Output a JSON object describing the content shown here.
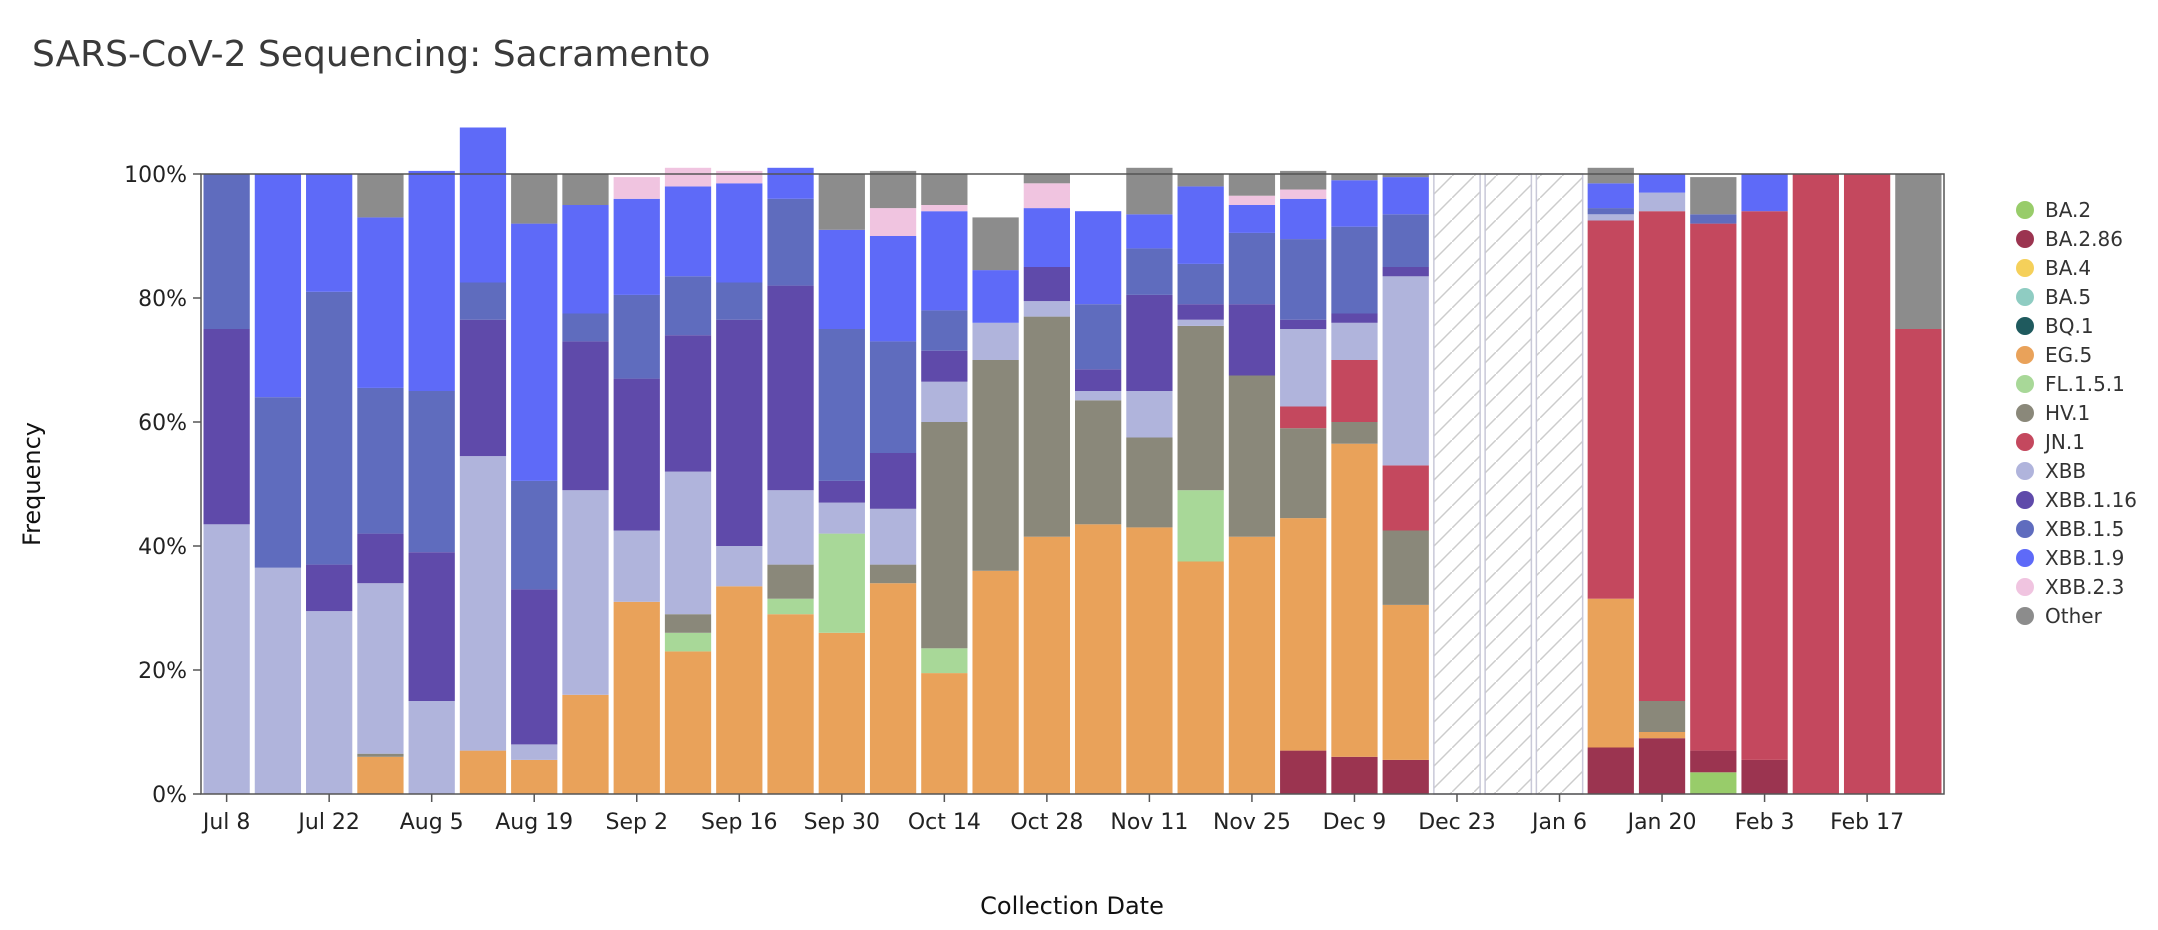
{
  "page": {
    "title": "SARS-CoV-2 Sequencing: Sacramento"
  },
  "chart_data": {
    "type": "bar",
    "stacked": true,
    "title": "SARS-CoV-2 Sequencing: Sacramento",
    "xlabel": "Collection Date",
    "ylabel": "Frequency",
    "ylim": [
      0,
      100
    ],
    "yticks": [
      "0%",
      "20%",
      "40%",
      "60%",
      "80%",
      "100%"
    ],
    "xtick_labels": [
      "Jul 8",
      "Jul 22",
      "Aug 5",
      "Aug 19",
      "Sep 2",
      "Sep 16",
      "Sep 30",
      "Oct 14",
      "Oct 28",
      "Nov 11",
      "Nov 25",
      "Dec 9",
      "Dec 23",
      "Jan 6",
      "Jan 20",
      "Feb 3",
      "Feb 17"
    ],
    "xtick_week_index": [
      0,
      2,
      4,
      6,
      8,
      10,
      12,
      14,
      16,
      18,
      20,
      22,
      24,
      26,
      28,
      30,
      32
    ],
    "categories": [
      "Jul 8",
      "Jul 15",
      "Jul 22",
      "Jul 29",
      "Aug 5",
      "Aug 12",
      "Aug 19",
      "Aug 26",
      "Sep 2",
      "Sep 9",
      "Sep 16",
      "Sep 23",
      "Sep 30",
      "Oct 7",
      "Oct 14",
      "Oct 21",
      "Oct 28",
      "Nov 4",
      "Nov 11",
      "Nov 18",
      "Nov 25",
      "Dec 2",
      "Dec 9",
      "Dec 16",
      "Dec 23",
      "Dec 30",
      "Jan 6",
      "Jan 13",
      "Jan 20",
      "Jan 27",
      "Feb 3",
      "Feb 10",
      "Feb 17",
      "Feb 24"
    ],
    "no_data_weeks": [
      "Dec 23",
      "Dec 30",
      "Jan 6"
    ],
    "legend_position": "right",
    "series": [
      {
        "name": "BA.2",
        "color": "#98cc6a",
        "values": [
          0,
          0,
          0,
          0,
          0,
          0,
          0,
          0,
          0,
          0,
          0,
          0,
          0,
          0,
          0,
          0,
          0,
          0,
          0,
          0,
          0,
          0,
          0,
          0,
          0,
          0,
          0,
          0,
          0,
          3.5,
          0,
          0,
          0,
          0
        ]
      },
      {
        "name": "BA.2.86",
        "color": "#9b3450",
        "values": [
          0,
          0,
          0,
          0,
          0,
          0,
          0,
          0,
          0,
          0,
          0,
          0,
          0,
          0,
          0,
          0,
          0,
          0,
          0,
          0,
          0,
          7,
          6,
          5.5,
          0,
          0,
          0,
          7.5,
          9,
          3.5,
          5.5,
          0,
          0,
          0
        ]
      },
      {
        "name": "BA.4",
        "color": "#f5d05a",
        "values": [
          0,
          0,
          0,
          0,
          0,
          0,
          0,
          0,
          0,
          0,
          0,
          0,
          0,
          0,
          0,
          0,
          0,
          0,
          0,
          0,
          0,
          0,
          0,
          0,
          0,
          0,
          0,
          0,
          0,
          0,
          0,
          0,
          0,
          0
        ]
      },
      {
        "name": "BA.5",
        "color": "#8fccc2",
        "values": [
          0,
          0,
          0,
          0,
          0,
          0,
          0,
          0,
          0,
          0,
          0,
          0,
          0,
          0,
          0,
          0,
          0,
          0,
          0,
          0,
          0,
          0,
          0,
          0,
          0,
          0,
          0,
          0,
          0,
          0,
          0,
          0,
          0,
          0
        ]
      },
      {
        "name": "BQ.1",
        "color": "#1f5a5e",
        "values": [
          0,
          0,
          0,
          0,
          0,
          0,
          0,
          0,
          0,
          0,
          0,
          0,
          0,
          0,
          0,
          0,
          0,
          0,
          0,
          0,
          0,
          0,
          0,
          0,
          0,
          0,
          0,
          0,
          0,
          0,
          0,
          0,
          0,
          0
        ]
      },
      {
        "name": "EG.5",
        "color": "#e9a25a",
        "values": [
          0,
          0,
          0,
          6,
          0,
          7,
          5.5,
          16,
          31,
          23,
          33.5,
          29,
          26,
          34,
          19.5,
          36,
          41.5,
          43.5,
          43,
          37.5,
          41.5,
          37.5,
          50.5,
          25,
          0,
          0,
          0,
          24,
          1,
          0,
          0,
          0,
          0,
          0
        ]
      },
      {
        "name": "FL.1.5.1",
        "color": "#a8d898",
        "values": [
          0,
          0,
          0,
          0,
          0,
          0,
          0,
          0,
          0,
          3,
          0,
          2.5,
          16,
          0,
          4,
          0,
          0,
          0,
          0,
          11.5,
          0,
          0,
          0,
          0,
          0,
          0,
          0,
          0,
          0,
          0,
          0,
          0,
          0,
          0
        ]
      },
      {
        "name": "HV.1",
        "color": "#8a887a",
        "values": [
          0,
          0,
          0,
          0.5,
          0,
          0,
          0,
          0,
          0,
          3,
          0,
          5.5,
          0,
          3,
          36.5,
          34,
          35.5,
          20,
          14.5,
          26.5,
          26,
          14.5,
          3.5,
          12,
          0,
          0,
          0,
          0,
          5,
          0,
          0,
          0,
          0,
          0
        ]
      },
      {
        "name": "JN.1",
        "color": "#c4485e",
        "values": [
          0,
          0,
          0,
          0,
          0,
          0,
          0,
          0,
          0,
          0,
          0,
          0,
          0,
          0,
          0,
          0,
          0,
          0,
          0,
          0,
          0,
          3.5,
          10,
          10.5,
          0,
          0,
          0,
          61,
          79,
          85,
          88.5,
          100,
          100,
          75
        ]
      },
      {
        "name": "XBB",
        "color": "#b0b4dc",
        "values": [
          43.5,
          36.5,
          29.5,
          27.5,
          15,
          47.5,
          2.5,
          33,
          11.5,
          23,
          6.5,
          12,
          5,
          9,
          6.5,
          6,
          2.5,
          1.5,
          7.5,
          1,
          0,
          12.5,
          6,
          30.5,
          0,
          0,
          0,
          1,
          3,
          0,
          0,
          0,
          0,
          0
        ]
      },
      {
        "name": "XBB.1.16",
        "color": "#5f4aaa",
        "values": [
          31.5,
          0,
          7.5,
          8,
          24,
          22,
          25,
          24,
          24.5,
          22,
          36.5,
          33,
          3.5,
          9,
          5,
          0,
          5.5,
          3.5,
          15.5,
          2.5,
          11.5,
          1.5,
          1.5,
          1.5,
          0,
          0,
          0,
          0,
          0,
          0,
          0,
          0,
          0,
          0
        ]
      },
      {
        "name": "XBB.1.5",
        "color": "#5f6cbe",
        "values": [
          25,
          27.5,
          44,
          23.5,
          26,
          6,
          17.5,
          4.5,
          13.5,
          9.5,
          6,
          14,
          24.5,
          18,
          6.5,
          0,
          0,
          10.5,
          7.5,
          6.5,
          11.5,
          13,
          14,
          8.5,
          0,
          0,
          0,
          1,
          0,
          1.5,
          0,
          0,
          0,
          0
        ]
      },
      {
        "name": "XBB.1.9",
        "color": "#5e6af8",
        "values": [
          0,
          36,
          19,
          27.5,
          35.5,
          25,
          41.5,
          17.5,
          15.5,
          14.5,
          16,
          5,
          16,
          17,
          16,
          8.5,
          9.5,
          15,
          5.5,
          12.5,
          4.5,
          6.5,
          7.5,
          6,
          0,
          0,
          0,
          4,
          3,
          0,
          6,
          0,
          0,
          0
        ]
      },
      {
        "name": "XBB.2.3",
        "color": "#f0c4e0",
        "values": [
          0,
          0,
          0,
          0,
          0,
          0,
          0,
          0,
          3.5,
          3,
          2,
          0,
          0,
          4.5,
          1,
          0,
          4,
          0,
          0,
          0,
          1.5,
          1.5,
          0,
          0,
          0,
          0,
          0,
          0,
          0,
          0,
          0,
          0,
          0,
          0
        ]
      },
      {
        "name": "Other",
        "color": "#8c8c8c",
        "values": [
          0,
          0,
          0,
          7,
          0,
          0,
          8,
          5,
          0,
          0,
          0,
          0,
          9,
          6,
          5,
          8.5,
          1.5,
          0,
          7.5,
          2,
          3.5,
          3,
          1,
          0.5,
          0,
          0,
          0,
          2.5,
          0,
          6,
          0,
          0,
          0,
          25
        ]
      }
    ]
  }
}
